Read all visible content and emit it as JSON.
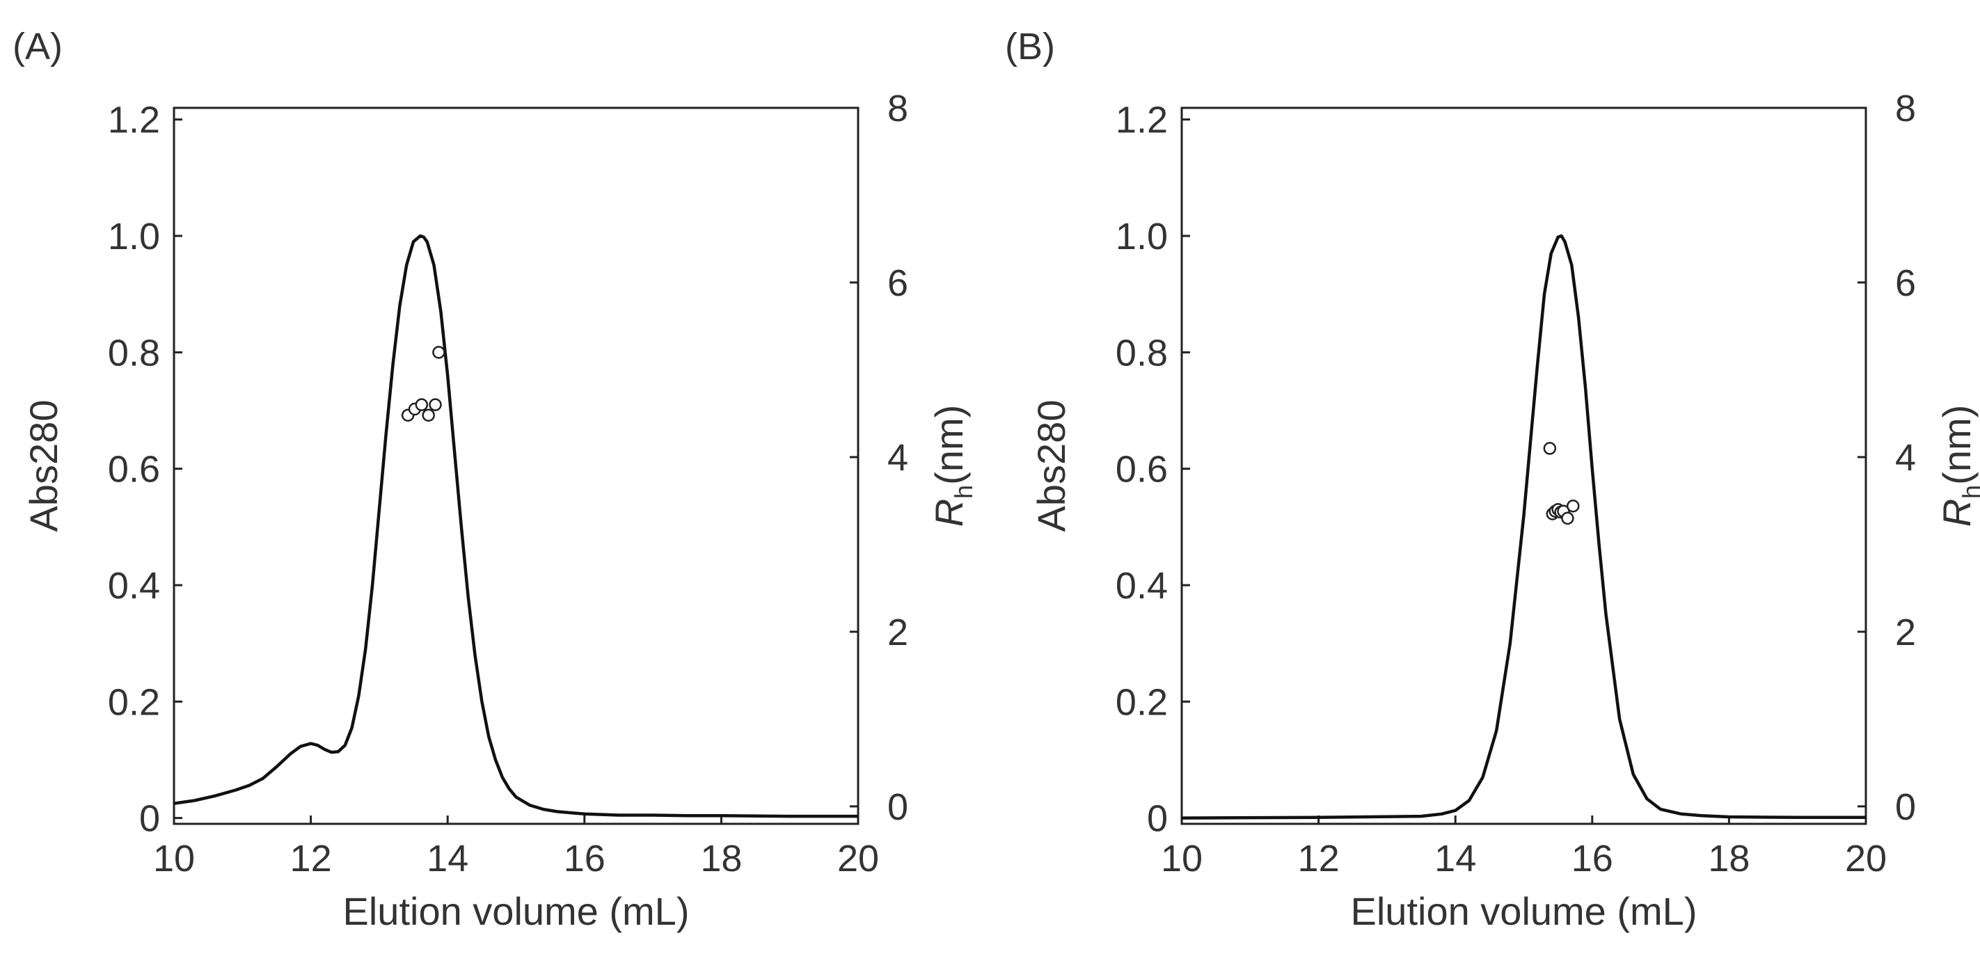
{
  "chart_data": [
    {
      "type": "line",
      "panel_label": "(A)",
      "xlabel": "Elution volume (mL)",
      "ylabel": "Abs280",
      "y2label": {
        "italic": "R",
        "sub": "h",
        "rest": "(nm)"
      },
      "xlim": [
        10,
        20
      ],
      "ylim": [
        -0.01,
        1.22
      ],
      "y2lim": [
        -0.2,
        8.0
      ],
      "xticks": [
        "10",
        "12",
        "14",
        "16",
        "18",
        "20"
      ],
      "yticks": [
        "0",
        "0.2",
        "0.4",
        "0.6",
        "0.8",
        "1.0",
        "1.2"
      ],
      "y2ticks": [
        "0",
        "2",
        "4",
        "6",
        "8"
      ],
      "grid": false,
      "series": [
        {
          "axis": "left",
          "style": "line",
          "x": [
            10.0,
            10.3,
            10.6,
            10.9,
            11.1,
            11.3,
            11.5,
            11.7,
            11.85,
            12.0,
            12.1,
            12.2,
            12.3,
            12.4,
            12.5,
            12.6,
            12.7,
            12.8,
            12.9,
            13.0,
            13.1,
            13.2,
            13.3,
            13.4,
            13.5,
            13.6,
            13.65,
            13.7,
            13.8,
            13.9,
            14.0,
            14.1,
            14.2,
            14.3,
            14.4,
            14.5,
            14.6,
            14.7,
            14.8,
            14.9,
            15.0,
            15.2,
            15.4,
            15.6,
            15.8,
            16.0,
            16.5,
            17.0,
            17.5,
            18.0,
            19.0,
            20.0
          ],
          "y": [
            0.025,
            0.03,
            0.038,
            0.048,
            0.056,
            0.068,
            0.088,
            0.11,
            0.123,
            0.128,
            0.125,
            0.118,
            0.113,
            0.114,
            0.125,
            0.155,
            0.21,
            0.29,
            0.4,
            0.53,
            0.66,
            0.78,
            0.88,
            0.95,
            0.99,
            1.0,
            0.998,
            0.99,
            0.95,
            0.87,
            0.76,
            0.63,
            0.5,
            0.38,
            0.28,
            0.2,
            0.14,
            0.1,
            0.07,
            0.05,
            0.036,
            0.022,
            0.015,
            0.011,
            0.009,
            0.007,
            0.005,
            0.005,
            0.004,
            0.004,
            0.003,
            0.003
          ]
        },
        {
          "axis": "right",
          "style": "scatter",
          "x": [
            13.42,
            13.52,
            13.62,
            13.72,
            13.82,
            13.87
          ],
          "y": [
            4.48,
            4.55,
            4.6,
            4.48,
            4.6,
            5.2
          ]
        }
      ]
    },
    {
      "type": "line",
      "panel_label": "(B)",
      "xlabel": "Elution volume (mL)",
      "ylabel": "Abs280",
      "y2label": {
        "italic": "R",
        "sub": "h",
        "rest": "(nm)"
      },
      "xlim": [
        10,
        20
      ],
      "ylim": [
        -0.01,
        1.22
      ],
      "y2lim": [
        -0.2,
        8.0
      ],
      "xticks": [
        "10",
        "12",
        "14",
        "16",
        "18",
        "20"
      ],
      "yticks": [
        "0",
        "0.2",
        "0.4",
        "0.6",
        "0.8",
        "1.0",
        "1.2"
      ],
      "y2ticks": [
        "0",
        "2",
        "4",
        "6",
        "8"
      ],
      "grid": false,
      "series": [
        {
          "axis": "left",
          "style": "line",
          "x": [
            10.0,
            12.0,
            13.5,
            13.8,
            14.0,
            14.2,
            14.4,
            14.6,
            14.8,
            15.0,
            15.1,
            15.2,
            15.3,
            15.4,
            15.5,
            15.55,
            15.6,
            15.7,
            15.8,
            15.9,
            16.0,
            16.1,
            16.2,
            16.4,
            16.6,
            16.8,
            17.0,
            17.3,
            17.6,
            18.0,
            19.0,
            20.0
          ],
          "y": [
            0.0,
            0.001,
            0.003,
            0.007,
            0.013,
            0.03,
            0.07,
            0.15,
            0.3,
            0.52,
            0.65,
            0.78,
            0.9,
            0.97,
            0.998,
            1.0,
            0.99,
            0.95,
            0.86,
            0.74,
            0.6,
            0.47,
            0.35,
            0.17,
            0.075,
            0.033,
            0.015,
            0.007,
            0.004,
            0.002,
            0.001,
            0.001
          ]
        },
        {
          "axis": "right",
          "style": "scatter",
          "x": [
            15.38,
            15.42,
            15.46,
            15.5,
            15.54,
            15.58,
            15.64,
            15.72
          ],
          "y": [
            4.1,
            3.35,
            3.38,
            3.4,
            3.37,
            3.38,
            3.3,
            3.44
          ]
        }
      ]
    }
  ]
}
